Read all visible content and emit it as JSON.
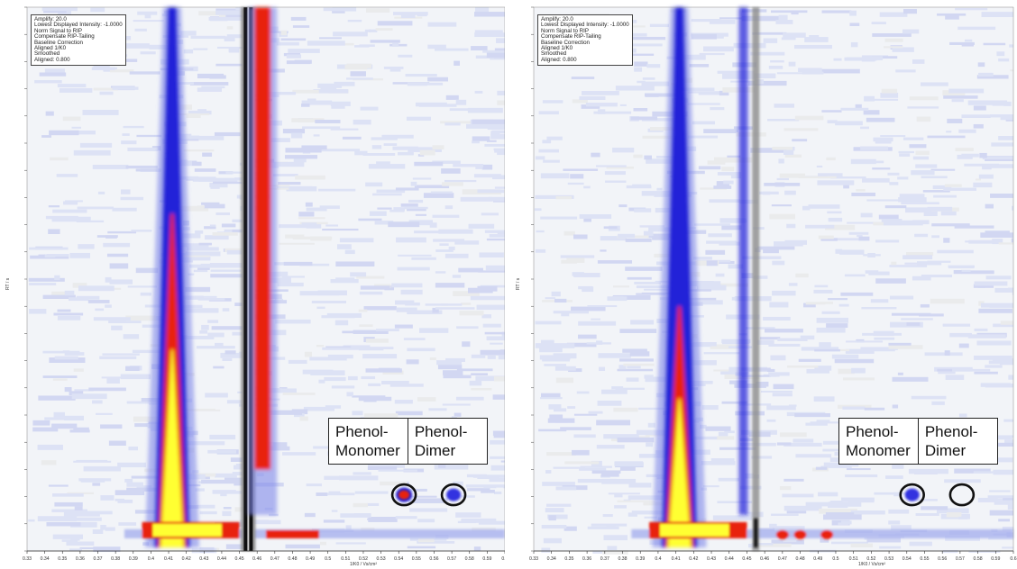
{
  "chart_data": [
    {
      "type": "heatmap",
      "title": "",
      "xlabel": "1/K0 / Vs/cm²",
      "ylabel": "RT / s",
      "xlim": [
        0.33,
        0.6
      ],
      "x_ticks": [
        "0.33",
        "0.34",
        "0.35",
        "0.36",
        "0.37",
        "0.38",
        "0.39",
        "0.4",
        "0.41",
        "0.42",
        "0.43",
        "0.44",
        "0.45",
        "0.46",
        "0.47",
        "0.48",
        "0.49",
        "0.5",
        "0.51",
        "0.52",
        "0.53",
        "0.54",
        "0.55",
        "0.56",
        "0.57",
        "0.58",
        "0.59",
        "0.6"
      ],
      "settings": [
        "Amplify: 20.0",
        "Lowest Displayed Intensity: -1.0000",
        "Norm Signal to RIP",
        "Compensate RIP-Tailing",
        "Baseline Correction",
        "Aligned 1/K0",
        "Smoothed",
        "Aligned: 0.800"
      ],
      "colors": {
        "background": "#f2f4f8",
        "low": "#c6ccf0",
        "mid": "#2020d8",
        "high": "#e82010",
        "peak": "#ffff30",
        "rip": "#101010"
      },
      "peaks": [
        {
          "x": 0.412,
          "y_start": 0.0,
          "y_end": 1.0,
          "intensity": "high",
          "shape": "cone"
        },
        {
          "x": 0.455,
          "y_start": 0.0,
          "y_end": 1.0,
          "intensity": "rip",
          "shape": "line"
        },
        {
          "x": 0.463,
          "y_start": 0.15,
          "y_end": 1.0,
          "intensity": "high",
          "shape": "band"
        }
      ],
      "annotations": [
        {
          "label_lines": [
            "Phenol-",
            "Monomer"
          ],
          "x": 0.543,
          "y": 0.1,
          "marker": "circle",
          "intensity": "high"
        },
        {
          "label_lines": [
            "Phenol-",
            "Dimer"
          ],
          "x": 0.571,
          "y": 0.1,
          "marker": "circle",
          "intensity": "mid"
        }
      ]
    },
    {
      "type": "heatmap",
      "title": "",
      "xlabel": "1/K0 / Vs/cm²",
      "ylabel": "RT / s",
      "xlim": [
        0.33,
        0.6
      ],
      "x_ticks": [
        "0.33",
        "0.34",
        "0.35",
        "0.36",
        "0.37",
        "0.38",
        "0.39",
        "0.4",
        "0.41",
        "0.42",
        "0.43",
        "0.44",
        "0.45",
        "0.46",
        "0.47",
        "0.48",
        "0.49",
        "0.5",
        "0.51",
        "0.52",
        "0.53",
        "0.54",
        "0.55",
        "0.56",
        "0.57",
        "0.58",
        "0.59",
        "0.6"
      ],
      "settings": [
        "Amplify: 20.0",
        "Lowest Displayed Intensity: -1.0000",
        "Norm Signal to RIP",
        "Compensate RIP-Tailing",
        "Baseline Correction",
        "Aligned 1/K0",
        "Smoothed",
        "Aligned: 0.800"
      ],
      "colors": {
        "background": "#f2f4f8",
        "low": "#c6ccf0",
        "mid": "#2020d8",
        "high": "#e82010",
        "peak": "#ffff30",
        "rip": "#606060"
      },
      "peaks": [
        {
          "x": 0.412,
          "y_start": 0.0,
          "y_end": 1.0,
          "intensity": "high",
          "shape": "cone"
        },
        {
          "x": 0.455,
          "y_start": 0.0,
          "y_end": 1.0,
          "intensity": "rip",
          "shape": "line"
        },
        {
          "x": 0.448,
          "y_start": 0.2,
          "y_end": 1.0,
          "intensity": "mid",
          "shape": "band"
        }
      ],
      "annotations": [
        {
          "label_lines": [
            "Phenol-",
            "Monomer"
          ],
          "x": 0.543,
          "y": 0.1,
          "marker": "circle",
          "intensity": "mid"
        },
        {
          "label_lines": [
            "Phenol-",
            "Dimer"
          ],
          "x": 0.571,
          "y": 0.1,
          "marker": "circle",
          "intensity": "none"
        }
      ]
    }
  ]
}
